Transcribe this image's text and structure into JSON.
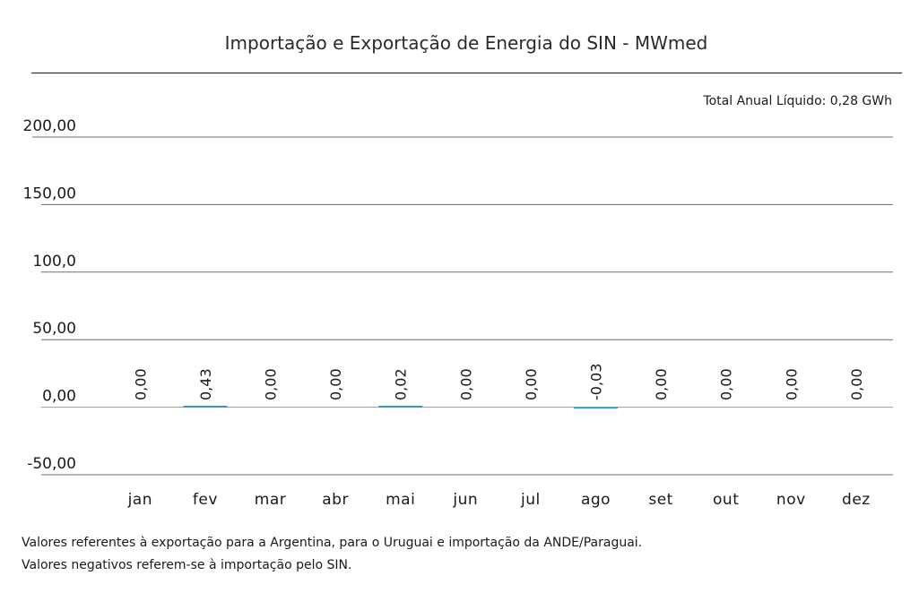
{
  "chart_data": {
    "type": "bar",
    "title": "Importação e Exportação de Energia do SIN - MWmed",
    "annotation": "Total Anual Líquido: 0,28 GWh",
    "categories": [
      "jan",
      "fev",
      "mar",
      "abr",
      "mai",
      "jun",
      "jul",
      "ago",
      "set",
      "out",
      "nov",
      "dez"
    ],
    "values": [
      0.0,
      0.43,
      0.0,
      0.0,
      0.02,
      0.0,
      0.0,
      -0.03,
      0.0,
      0.0,
      0.0,
      0.0
    ],
    "data_labels": [
      "0,00",
      "0,43",
      "0,00",
      "0,00",
      "0,02",
      "0,00",
      "0,00",
      "-0,03",
      "0,00",
      "0,00",
      "0,00",
      "0,00"
    ],
    "yticks": [
      {
        "value": 200,
        "label": "200,00"
      },
      {
        "value": 150,
        "label": "150,00"
      },
      {
        "value": 100,
        "label": "100,0"
      },
      {
        "value": 50,
        "label": "50,00"
      },
      {
        "value": 0,
        "label": "0,00"
      },
      {
        "value": -50,
        "label": "-50,00"
      }
    ],
    "ylim": [
      -50,
      200
    ],
    "grid": true,
    "bar_color": "#1f9ac9",
    "xlabel": "",
    "ylabel": ""
  },
  "notes": {
    "line1": "Valores referentes à exportação para a Argentina, para o Uruguai e importação da ANDE/Paraguai.",
    "line2": "Valores negativos referem-se à importação pelo SIN."
  }
}
